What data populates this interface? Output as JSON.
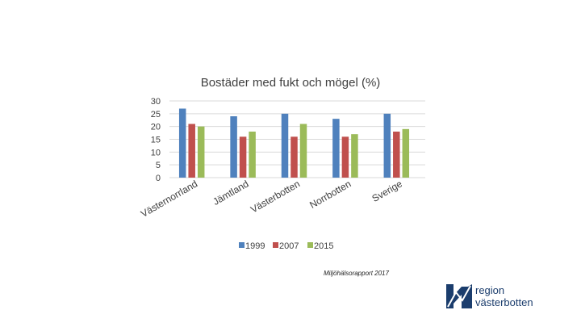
{
  "chart_data": {
    "type": "bar",
    "title": "Bostäder med fukt och mögel (%)",
    "categories": [
      "Västernorrland",
      "Jämtland",
      "Västerbotten",
      "Norrbotten",
      "Sverige"
    ],
    "series": [
      {
        "name": "1999",
        "color": "#4f81bd",
        "values": [
          27,
          24,
          25,
          23,
          25
        ]
      },
      {
        "name": "2007",
        "color": "#c0504d",
        "values": [
          21,
          16,
          16,
          16,
          18
        ]
      },
      {
        "name": "2015",
        "color": "#9bbb59",
        "values": [
          20,
          18,
          21,
          17,
          19
        ]
      }
    ],
    "ylim": [
      0,
      30
    ],
    "yticks": [
      0,
      5,
      10,
      15,
      20,
      25,
      30
    ],
    "grid": true,
    "legend_position": "bottom"
  },
  "footer": {
    "source": "Miljöhälsorapport 2017",
    "logo_line1": "region",
    "logo_line2": "västerbotten",
    "logo_icon": "region-vasterbotten-logo-icon",
    "logo_color": "#1b3d6d"
  }
}
